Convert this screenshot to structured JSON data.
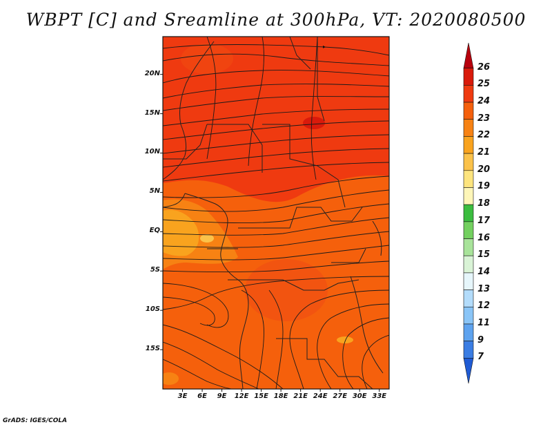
{
  "title": "WBPT [C] and Sreamline at 300hPa, VT: 2020080500",
  "credit": "GrADS: IGES/COLA",
  "map": {
    "lat_labels": [
      "20N",
      "15N",
      "10N",
      "5N",
      "EQ",
      "5S",
      "10S",
      "15S"
    ],
    "lon_labels": [
      "3E",
      "6E",
      "9E",
      "12E",
      "15E",
      "18E",
      "21E",
      "24E",
      "27E",
      "30E",
      "33E"
    ],
    "lat_values": [
      20,
      15,
      10,
      5,
      0,
      -5,
      -10,
      -15
    ],
    "lon_values": [
      3,
      6,
      9,
      12,
      15,
      18,
      21,
      24,
      27,
      30,
      33
    ],
    "lat_range": [
      -20,
      24.8
    ],
    "lon_range": [
      0,
      34.5
    ]
  },
  "colorbar": {
    "labels": [
      "26",
      "25",
      "24",
      "23",
      "22",
      "21",
      "20",
      "19",
      "18",
      "17",
      "16",
      "15",
      "14",
      "13",
      "12",
      "11",
      "9",
      "7"
    ],
    "colors": [
      "#b8000d",
      "#d91a0b",
      "#ef3a10",
      "#f5600c",
      "#f78213",
      "#f9a31e",
      "#fbc24a",
      "#fde47e",
      "#fef6b8",
      "#3bbd3f",
      "#73d05f",
      "#a8e39a",
      "#d9f3d6",
      "#e6f6fb",
      "#b3dcfb",
      "#8ac5f7",
      "#5ea3ef",
      "#3a7de3",
      "#1f5bd4"
    ]
  }
}
